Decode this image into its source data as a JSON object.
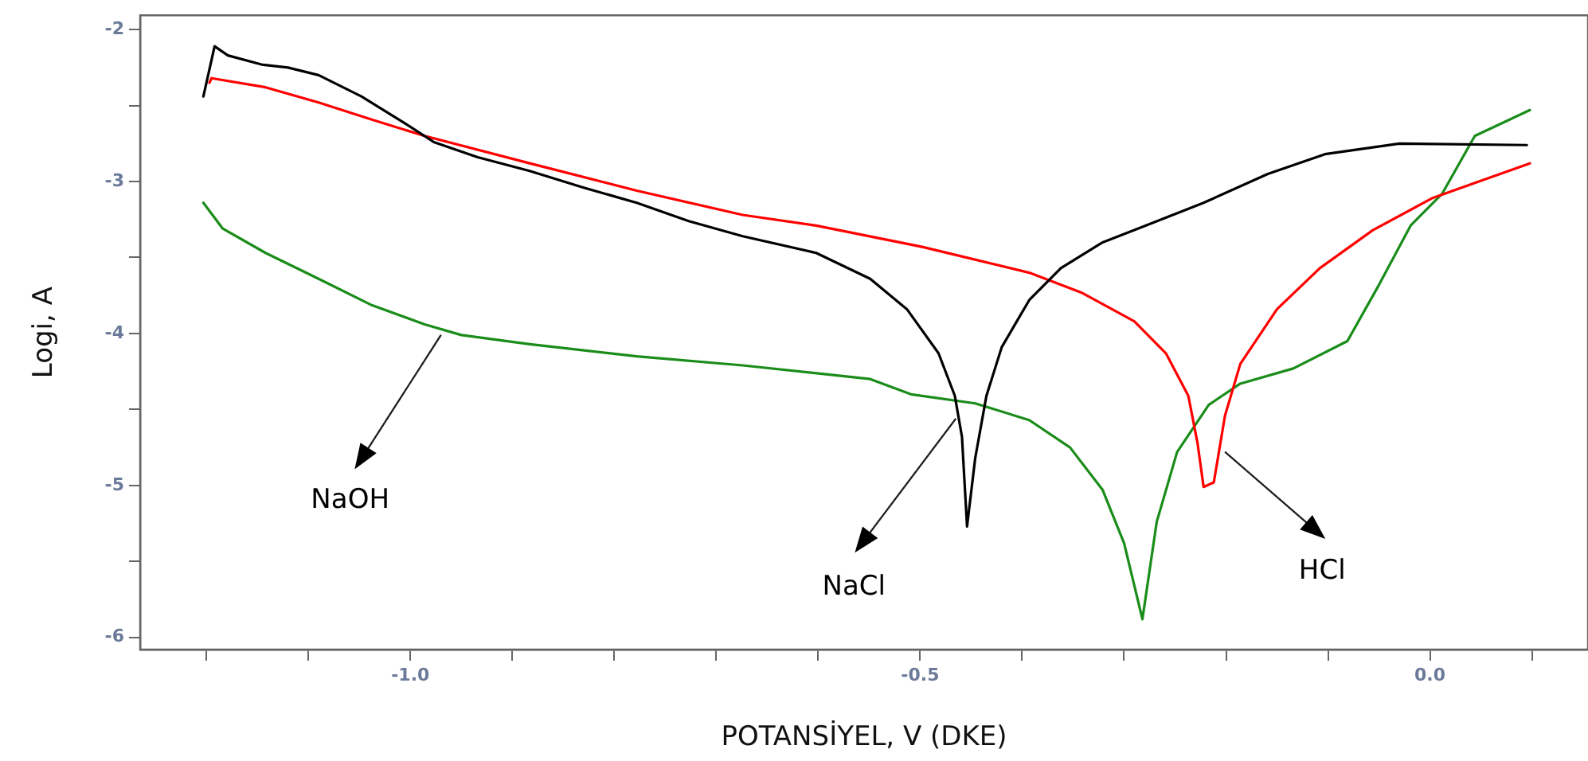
{
  "chart_data": {
    "type": "line",
    "xlabel": "POTANSİYEL, V (DKE)",
    "ylabel": "Logi, A",
    "xlim": [
      -1.265,
      0.155
    ],
    "ylim": [
      -6.08,
      -1.906
    ],
    "xticks": [
      {
        "value": -1.2,
        "label": null
      },
      {
        "value": -1.1,
        "label": null
      },
      {
        "value": -1.0,
        "label": "-1.0"
      },
      {
        "value": -0.9,
        "label": null
      },
      {
        "value": -0.8,
        "label": null
      },
      {
        "value": -0.7,
        "label": null
      },
      {
        "value": -0.6,
        "label": null
      },
      {
        "value": -0.5,
        "label": "-0.5"
      },
      {
        "value": -0.4,
        "label": null
      },
      {
        "value": -0.3,
        "label": null
      },
      {
        "value": -0.2,
        "label": null
      },
      {
        "value": -0.1,
        "label": null
      },
      {
        "value": 0.0,
        "label": "0.0"
      },
      {
        "value": 0.1,
        "label": null
      }
    ],
    "yticks": [
      -6,
      {
        "value": -5.5,
        "label": null
      },
      -5,
      {
        "value": -4.5,
        "label": null
      },
      -4,
      {
        "value": -3.5,
        "label": null
      },
      -3,
      {
        "value": -2.5,
        "label": null
      },
      -2
    ],
    "legend": false,
    "marker": "none",
    "line_style": "solid",
    "series": [
      {
        "color": "#000000",
        "x": [
          -1.203,
          -1.192,
          -1.179,
          -1.146,
          -1.12,
          -1.09,
          -1.048,
          -1.007,
          -0.977,
          -0.934,
          -0.883,
          -0.83,
          -0.778,
          -0.727,
          -0.674,
          -0.602,
          -0.549,
          -0.513,
          -0.482,
          -0.466,
          -0.459,
          -0.454,
          -0.446,
          -0.435,
          -0.42,
          -0.393,
          -0.362,
          -0.321,
          -0.279,
          -0.222,
          -0.159,
          -0.103,
          -0.03,
          0.095
        ],
        "values": [
          -2.44,
          -2.11,
          -2.17,
          -2.23,
          -2.25,
          -2.3,
          -2.44,
          -2.61,
          -2.74,
          -2.84,
          -2.93,
          -3.04,
          -3.14,
          -3.26,
          -3.36,
          -3.47,
          -3.64,
          -3.84,
          -4.13,
          -4.41,
          -4.68,
          -5.27,
          -4.82,
          -4.41,
          -4.09,
          -3.78,
          -3.57,
          -3.4,
          -3.29,
          -3.14,
          -2.95,
          -2.82,
          -2.75,
          -2.76
        ]
      },
      {
        "color": "#ff0000",
        "x": [
          -1.197,
          -1.195,
          -1.142,
          -1.09,
          -1.039,
          -0.986,
          -0.883,
          -0.778,
          -0.674,
          -0.602,
          -0.498,
          -0.393,
          -0.342,
          -0.29,
          -0.259,
          -0.237,
          -0.228,
          -0.222,
          -0.212,
          -0.201,
          -0.186,
          -0.15,
          -0.108,
          -0.056,
          0.002,
          0.048,
          0.098
        ],
        "values": [
          -2.35,
          -2.32,
          -2.38,
          -2.48,
          -2.59,
          -2.7,
          -2.88,
          -3.06,
          -3.22,
          -3.29,
          -3.43,
          -3.6,
          -3.73,
          -3.92,
          -4.13,
          -4.41,
          -4.72,
          -5.01,
          -4.98,
          -4.54,
          -4.2,
          -3.84,
          -3.57,
          -3.32,
          -3.11,
          -3.0,
          -2.88
        ]
      },
      {
        "color": "#1a8c1a",
        "x": [
          -1.203,
          -1.184,
          -1.142,
          -1.09,
          -1.039,
          -0.986,
          -0.95,
          -0.883,
          -0.778,
          -0.674,
          -0.549,
          -0.509,
          -0.446,
          -0.393,
          -0.353,
          -0.321,
          -0.3,
          -0.282,
          -0.268,
          -0.248,
          -0.217,
          -0.186,
          -0.134,
          -0.081,
          -0.05,
          -0.019,
          0.012,
          0.044,
          0.098
        ],
        "values": [
          -3.14,
          -3.31,
          -3.47,
          -3.64,
          -3.81,
          -3.94,
          -4.01,
          -4.07,
          -4.15,
          -4.21,
          -4.3,
          -4.4,
          -4.46,
          -4.57,
          -4.75,
          -5.03,
          -5.38,
          -5.88,
          -5.24,
          -4.78,
          -4.47,
          -4.33,
          -4.23,
          -4.05,
          -3.68,
          -3.29,
          -3.08,
          -2.7,
          -2.53
        ]
      }
    ],
    "annotations": [
      {
        "text": "NaOH",
        "x": -0.97,
        "y": -4.01
      },
      {
        "text": "NaCl",
        "x": -0.465,
        "y": -4.56
      },
      {
        "text": "HCl",
        "x": -0.201,
        "y": -4.78
      }
    ]
  }
}
